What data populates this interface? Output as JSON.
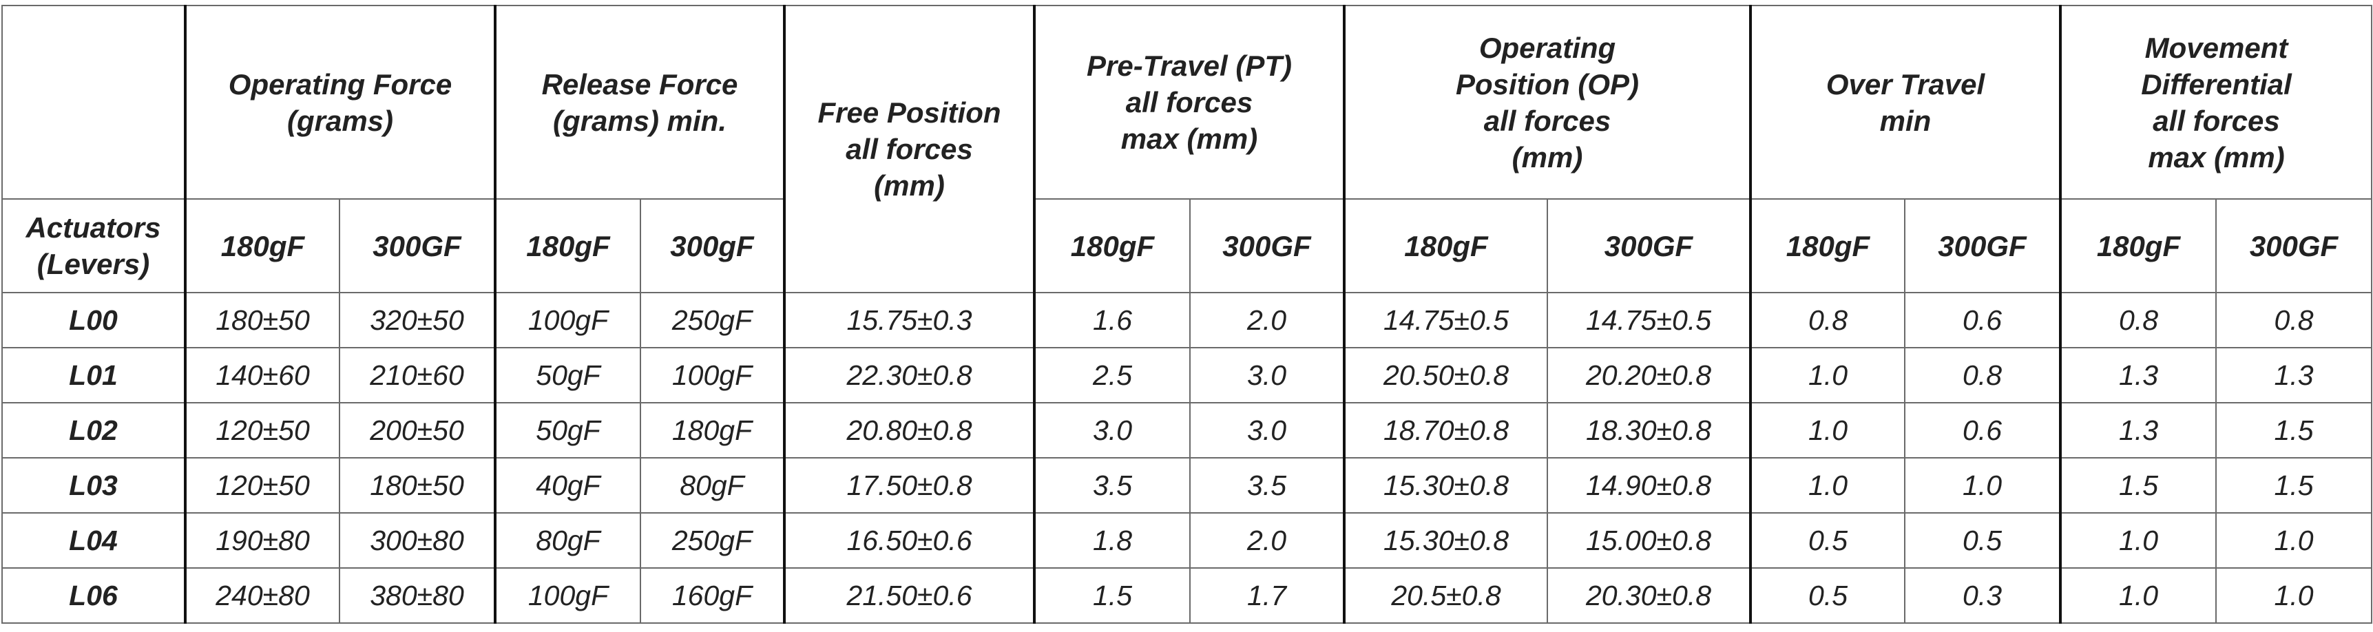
{
  "table": {
    "corner": "Actuators\n(Levers)",
    "groups": [
      {
        "title": "Operating Force\n(grams)",
        "columns": [
          "180gF",
          "300GF"
        ]
      },
      {
        "title": "Release Force\n(grams) min.",
        "columns": [
          "180gF",
          "300gF"
        ]
      },
      {
        "title": "Free Position\nall forces\n(mm)"
      },
      {
        "title": "Pre-Travel (PT)\nall forces\nmax (mm)",
        "columns": [
          "180gF",
          "300GF"
        ]
      },
      {
        "title": "Operating\nPosition (OP)\nall forces\n(mm)",
        "columns": [
          "180gF",
          "300GF"
        ]
      },
      {
        "title": "Over Travel\nmin",
        "columns": [
          "180gF",
          "300GF"
        ]
      },
      {
        "title": "Movement\nDifferential\nall forces\nmax (mm)",
        "columns": [
          "180gF",
          "300GF"
        ]
      }
    ],
    "rows": [
      [
        "L00",
        "180±50",
        "320±50",
        "100gF",
        "250gF",
        "15.75±0.3",
        "1.6",
        "2.0",
        "14.75±0.5",
        "14.75±0.5",
        "0.8",
        "0.6",
        "0.8",
        "0.8"
      ],
      [
        "L01",
        "140±60",
        "210±60",
        "50gF",
        "100gF",
        "22.30±0.8",
        "2.5",
        "3.0",
        "20.50±0.8",
        "20.20±0.8",
        "1.0",
        "0.8",
        "1.3",
        "1.3"
      ],
      [
        "L02",
        "120±50",
        "200±50",
        "50gF",
        "180gF",
        "20.80±0.8",
        "3.0",
        "3.0",
        "18.70±0.8",
        "18.30±0.8",
        "1.0",
        "0.6",
        "1.3",
        "1.5"
      ],
      [
        "L03",
        "120±50",
        "180±50",
        "40gF",
        "80gF",
        "17.50±0.8",
        "3.5",
        "3.5",
        "15.30±0.8",
        "14.90±0.8",
        "1.0",
        "1.0",
        "1.5",
        "1.5"
      ],
      [
        "L04",
        "190±80",
        "300±80",
        "80gF",
        "250gF",
        "16.50±0.6",
        "1.8",
        "2.0",
        "15.30±0.8",
        "15.00±0.8",
        "0.5",
        "0.5",
        "1.0",
        "1.0"
      ],
      [
        "L06",
        "240±80",
        "380±80",
        "100gF",
        "160gF",
        "21.50±0.6",
        "1.5",
        "1.7",
        "20.5±0.8",
        "20.30±0.8",
        "0.5",
        "0.3",
        "1.0",
        "1.0"
      ]
    ]
  }
}
